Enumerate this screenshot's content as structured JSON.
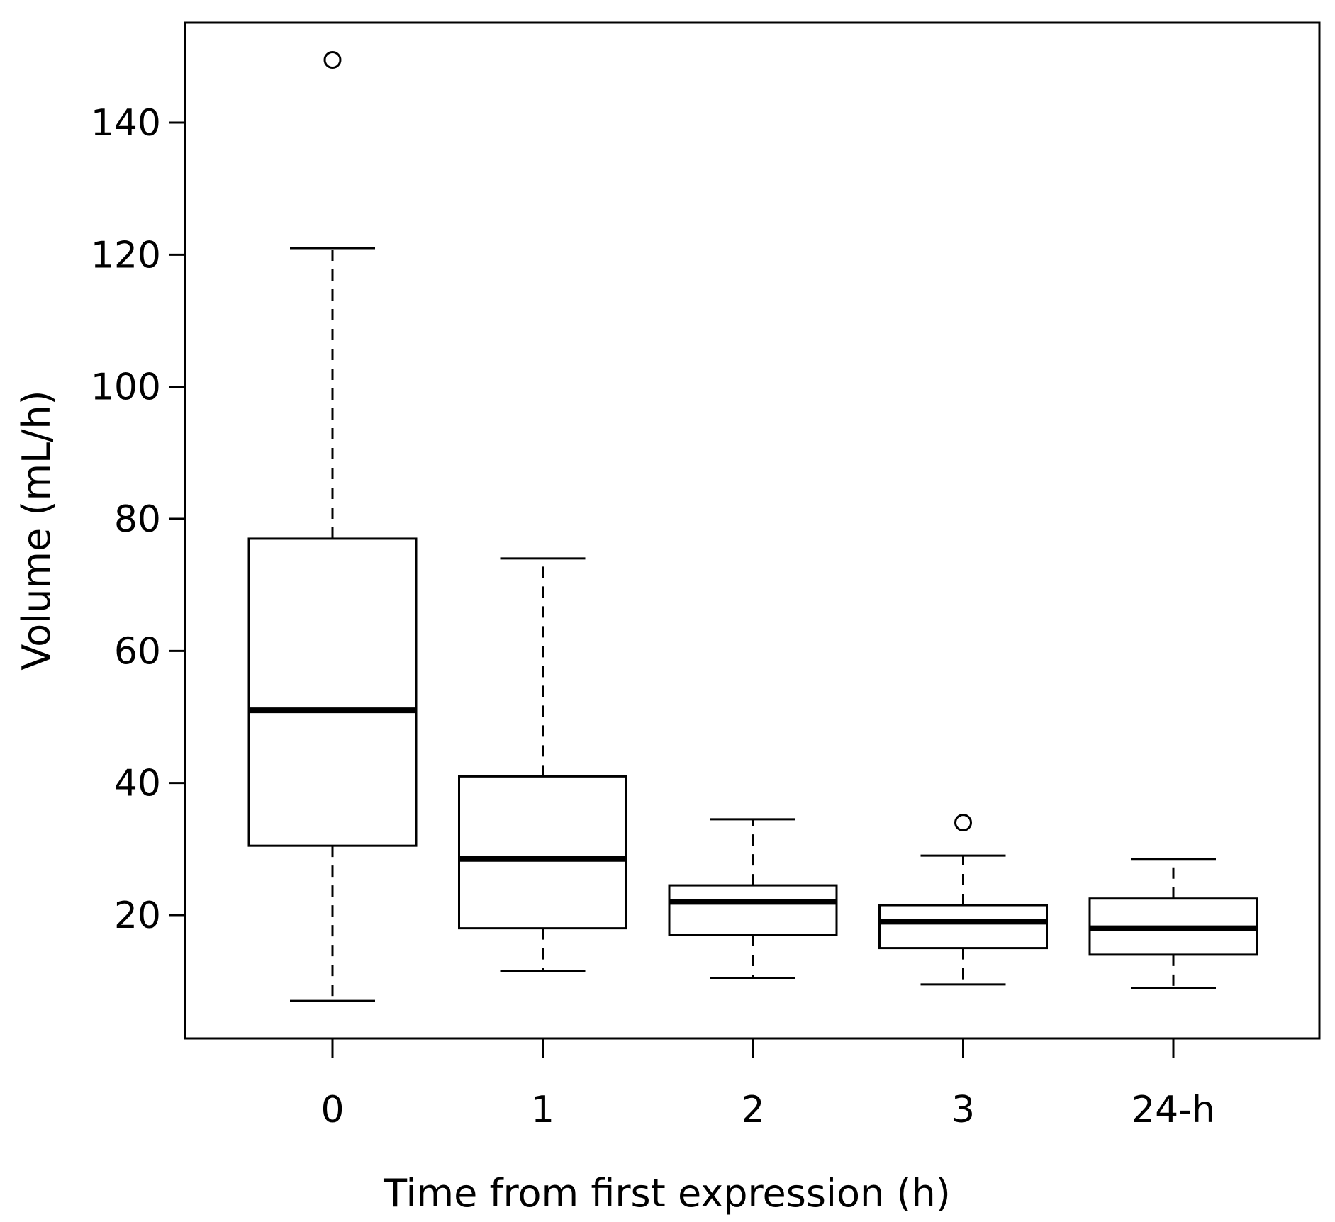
{
  "chart_data": {
    "type": "boxplot",
    "title": "",
    "xlabel": "Time from first expression (h)",
    "ylabel": "Volume (mL/h)",
    "ylim": [
      0,
      153
    ],
    "yticks": [
      20,
      40,
      60,
      80,
      100,
      120,
      140
    ],
    "categories": [
      "0",
      "1",
      "2",
      "3",
      "24-h"
    ],
    "boxes": [
      {
        "category": "0",
        "whisker_low": 7,
        "q1": 30.5,
        "median": 51,
        "q3": 77,
        "whisker_high": 121,
        "outliers": [
          149.5
        ]
      },
      {
        "category": "1",
        "whisker_low": 11.5,
        "q1": 18,
        "median": 28.5,
        "q3": 41,
        "whisker_high": 74,
        "outliers": []
      },
      {
        "category": "2",
        "whisker_low": 10.5,
        "q1": 17,
        "median": 22,
        "q3": 24.5,
        "whisker_high": 34.5,
        "outliers": []
      },
      {
        "category": "3",
        "whisker_low": 9.5,
        "q1": 15,
        "median": 19,
        "q3": 21.5,
        "whisker_high": 29,
        "outliers": [
          34
        ]
      },
      {
        "category": "24-h",
        "whisker_low": 9,
        "q1": 14,
        "median": 18,
        "q3": 22.5,
        "whisker_high": 28.5,
        "outliers": []
      }
    ],
    "grid": false,
    "legend": "none",
    "colors": {
      "stroke": "#000000",
      "fill": "#ffffff"
    }
  }
}
